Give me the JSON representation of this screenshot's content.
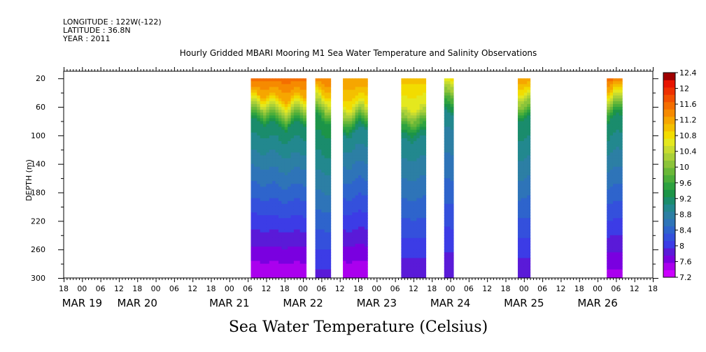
{
  "header": {
    "longitude": "LONGITUDE : 122W(-122)",
    "latitude": "LATITUDE : 36.8N",
    "year": "YEAR : 2011",
    "title": "Hourly Gridded MBARI Mooring M1 Sea Water Temperature and Salinity Observations"
  },
  "footer_label": "Sea Water Temperature (Celsius)",
  "chart_data": {
    "type": "heatmap",
    "title": "Hourly Gridded MBARI Mooring M1 Sea Water Temperature and Salinity Observations",
    "xlabel": "",
    "ylabel": "DEPTH (m)",
    "colorbar_label": "Sea Water Temperature (Celsius)",
    "x_start_hour": 18,
    "x_range_hours": [
      0,
      192
    ],
    "x_tick_labels": [
      "18",
      "00",
      "06",
      "12",
      "18",
      "00",
      "06",
      "12",
      "18",
      "00",
      "06",
      "12",
      "18",
      "00",
      "06",
      "12",
      "18",
      "00",
      "06",
      "12",
      "18",
      "00",
      "06",
      "12",
      "18",
      "00",
      "06",
      "12",
      "18",
      "00",
      "06",
      "12",
      "18"
    ],
    "date_labels": [
      {
        "label": "MAR 19",
        "hour": 6
      },
      {
        "label": "MAR 20",
        "hour": 24
      },
      {
        "label": "MAR 21",
        "hour": 54
      },
      {
        "label": "MAR 22",
        "hour": 78
      },
      {
        "label": "MAR 23",
        "hour": 102
      },
      {
        "label": "MAR 24",
        "hour": 126
      },
      {
        "label": "MAR 25",
        "hour": 150
      },
      {
        "label": "MAR 26",
        "hour": 174
      }
    ],
    "depth_range": [
      10,
      300
    ],
    "y_ticks": [
      20,
      60,
      100,
      140,
      180,
      220,
      260,
      300
    ],
    "data_depth_top": 20,
    "colorbar": {
      "min": 7.2,
      "max": 12.4,
      "step": 0.2,
      "tick_labels": [
        "12.4",
        "12",
        "11.6",
        "11.2",
        "10.8",
        "10.4",
        "10",
        "9.6",
        "9.2",
        "8.8",
        "8.4",
        "8",
        "7.6",
        "7.2"
      ],
      "colors": [
        "#cc00ff",
        "#aa00ee",
        "#7a00e0",
        "#5a1ad8",
        "#3c3ce6",
        "#3450dc",
        "#2e64cc",
        "#2e74b8",
        "#2c7fa4",
        "#22888e",
        "#1a8c6c",
        "#1c9448",
        "#2ea240",
        "#4cae3a",
        "#6ab838",
        "#8cc43a",
        "#aad038",
        "#c8dc30",
        "#e4e81e",
        "#f2dc00",
        "#f4c000",
        "#f6a600",
        "#f68a00",
        "#f46e00",
        "#f25000",
        "#ee3000",
        "#e81400",
        "#a00000"
      ]
    },
    "segments": [
      {
        "start_hour": 61,
        "end_hour": 79,
        "surface": 11.9,
        "bottom": 7.4,
        "mid_depth": 75
      },
      {
        "start_hour": 82,
        "end_hour": 87,
        "surface": 11.8,
        "bottom": 7.9,
        "mid_depth": 70
      },
      {
        "start_hour": 91,
        "end_hour": 99,
        "surface": 11.6,
        "bottom": 7.4,
        "mid_depth": 85
      },
      {
        "start_hour": 110,
        "end_hour": 118,
        "surface": 11.3,
        "bottom": 7.8,
        "mid_depth": 95
      },
      {
        "start_hour": 124,
        "end_hour": 127,
        "surface": 11.1,
        "bottom": 7.8,
        "mid_depth": 60
      },
      {
        "start_hour": 148,
        "end_hour": 152,
        "surface": 11.6,
        "bottom": 7.8,
        "mid_depth": 70
      },
      {
        "start_hour": 177,
        "end_hour": 182,
        "surface": 11.9,
        "bottom": 7.5,
        "mid_depth": 65
      }
    ],
    "grid": false,
    "legend": "colorbar-right"
  }
}
